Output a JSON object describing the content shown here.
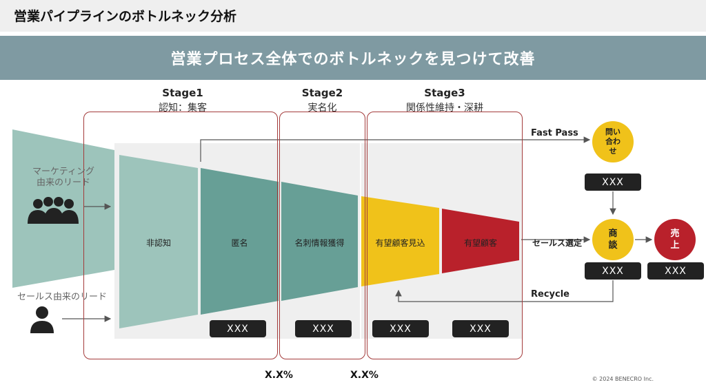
{
  "page_title": "営業パイプラインのボトルネック分析",
  "banner": "営業プロセス全体でのボトルネックを見つけて改善",
  "stages": [
    {
      "name": "Stage1",
      "sub": "認知：集客"
    },
    {
      "name": "Stage2",
      "sub": "実名化"
    },
    {
      "name": "Stage3",
      "sub": "関係性維持・深耕"
    }
  ],
  "leads": {
    "marketing": "マーケティング\n由来のリード",
    "marketing_line1": "マーケティング",
    "marketing_line2": "由来のリード",
    "sales": "セールス由来のリード"
  },
  "funnel_segments": [
    {
      "label": "非認知",
      "color": "#9dc4bb"
    },
    {
      "label": "匿名",
      "color": "#679f96"
    },
    {
      "label": "名刺情報獲得",
      "color": "#679f96"
    },
    {
      "label": "有望顧客見込",
      "color": "#f0c21a"
    },
    {
      "label": "有望顧客",
      "color": "#b9212b"
    }
  ],
  "metrics": {
    "anon": "XXX",
    "card": "XXX",
    "prospect_potential": "XXX",
    "prospect": "XXX",
    "inquiry": "XXX",
    "deal": "XXX",
    "sale": "XXX"
  },
  "conversion_rates": [
    "X.X%",
    "X.X%"
  ],
  "right_flow": {
    "fast_pass": "Fast Pass",
    "inquiry": "問い\n合わ\nせ",
    "inquiry_lines": [
      "問い",
      "合わ",
      "せ"
    ],
    "sales_select": "セールス選定",
    "deal_lines": [
      "商",
      "談"
    ],
    "sale_lines": [
      "売",
      "上"
    ],
    "recycle": "Recycle"
  },
  "colors": {
    "teal_light": "#9dc4bb",
    "teal_dark": "#679f96",
    "yellow": "#f0c21a",
    "red": "#b9212b",
    "banner": "#7f9aa2"
  },
  "copyright": "© 2024 BENECRO Inc."
}
